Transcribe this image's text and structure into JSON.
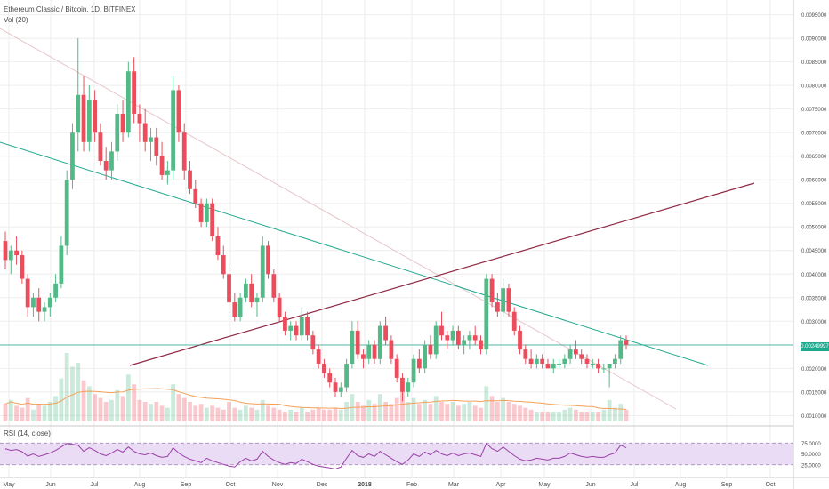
{
  "header": {
    "symbol_title": "Ethereum Classic / Bitcoin, 1D, BITFINEX",
    "volume_label": "Vol (20)"
  },
  "rsi": {
    "label": "RSI (14, close)",
    "levels": [
      "75.0000",
      "50.0000",
      "25.0000"
    ],
    "level_values": [
      75,
      50,
      25
    ]
  },
  "last_price_tag": "0.00249997",
  "colors": {
    "up": "#53b987",
    "down": "#eb4d5c",
    "teal_line": "#21a98f",
    "maroon_line": "#8e2a44",
    "rsi_line": "#9b3fa7",
    "rsi_band": "#eadcf5",
    "volume_ma": "#f5a05a",
    "grid": "#eeeeee"
  },
  "chart_data": {
    "type": "candlestick",
    "title": "Ethereum Classic / Bitcoin, 1D, BITFINEX",
    "x_tick_labels": [
      "May",
      "Jun",
      "Jul",
      "Aug",
      "Sep",
      "Oct",
      "Nov",
      "Dec",
      "2018",
      "Feb",
      "Mar",
      "Apr",
      "May",
      "Jun",
      "Jul",
      "Aug",
      "Sep",
      "Oct"
    ],
    "y_tick_labels": [
      "0.0095000",
      "0.0090000",
      "0.0085000",
      "0.0080000",
      "0.0075000",
      "0.0070000",
      "0.0065000",
      "0.0060000",
      "0.0055000",
      "0.0050000",
      "0.0045000",
      "0.0040000",
      "0.0035000",
      "0.0030000",
      "0.0025000",
      "0.0020000",
      "0.0015000",
      "0.0010000"
    ],
    "ylim": [
      0.00095,
      0.0097
    ],
    "series": [
      {
        "values": [
          [
            0.0047,
            0.0049,
            0.0041,
            0.0043
          ],
          [
            0.0043,
            0.0046,
            0.004,
            0.0045
          ],
          [
            0.0045,
            0.0048,
            0.0042,
            0.0044
          ],
          [
            0.0044,
            0.0045,
            0.0038,
            0.0039
          ],
          [
            0.0039,
            0.004,
            0.0031,
            0.0033
          ],
          [
            0.0033,
            0.0036,
            0.0031,
            0.0035
          ],
          [
            0.0035,
            0.0037,
            0.003,
            0.0032
          ],
          [
            0.0032,
            0.0034,
            0.003,
            0.0033
          ],
          [
            0.0033,
            0.0036,
            0.0031,
            0.0035
          ],
          [
            0.0035,
            0.004,
            0.0034,
            0.0038
          ],
          [
            0.0038,
            0.0048,
            0.0037,
            0.0046
          ],
          [
            0.0046,
            0.0062,
            0.0044,
            0.006
          ],
          [
            0.006,
            0.0072,
            0.0058,
            0.007
          ],
          [
            0.007,
            0.009,
            0.0066,
            0.0078
          ],
          [
            0.0078,
            0.0082,
            0.0066,
            0.0068
          ],
          [
            0.0068,
            0.008,
            0.0066,
            0.0077
          ],
          [
            0.0077,
            0.0079,
            0.0068,
            0.007
          ],
          [
            0.007,
            0.0072,
            0.0063,
            0.0064
          ],
          [
            0.0064,
            0.0067,
            0.006,
            0.0062
          ],
          [
            0.0062,
            0.0068,
            0.006,
            0.0066
          ],
          [
            0.0066,
            0.0076,
            0.0064,
            0.0074
          ],
          [
            0.0074,
            0.0077,
            0.0068,
            0.007
          ],
          [
            0.007,
            0.0085,
            0.0069,
            0.0083
          ],
          [
            0.0083,
            0.0086,
            0.0072,
            0.0074
          ],
          [
            0.0074,
            0.0076,
            0.0068,
            0.0072
          ],
          [
            0.0072,
            0.0075,
            0.0066,
            0.0068
          ],
          [
            0.0068,
            0.0071,
            0.0064,
            0.0069
          ],
          [
            0.0069,
            0.0071,
            0.0063,
            0.0065
          ],
          [
            0.0065,
            0.0068,
            0.006,
            0.0061
          ],
          [
            0.0061,
            0.0064,
            0.0059,
            0.0062
          ],
          [
            0.0062,
            0.0082,
            0.006,
            0.0079
          ],
          [
            0.0079,
            0.008,
            0.0068,
            0.007
          ],
          [
            0.007,
            0.0072,
            0.006,
            0.0062
          ],
          [
            0.0062,
            0.0064,
            0.0057,
            0.0058
          ],
          [
            0.0058,
            0.006,
            0.0054,
            0.0055
          ],
          [
            0.0055,
            0.0056,
            0.005,
            0.0051
          ],
          [
            0.0051,
            0.0056,
            0.005,
            0.0055
          ],
          [
            0.0055,
            0.0056,
            0.0047,
            0.0048
          ],
          [
            0.0048,
            0.005,
            0.0043,
            0.0044
          ],
          [
            0.0044,
            0.0046,
            0.0039,
            0.004
          ],
          [
            0.004,
            0.0042,
            0.0033,
            0.0034
          ],
          [
            0.0034,
            0.0036,
            0.003,
            0.0031
          ],
          [
            0.0031,
            0.0036,
            0.003,
            0.0035
          ],
          [
            0.0035,
            0.0039,
            0.0034,
            0.0038
          ],
          [
            0.0038,
            0.004,
            0.0033,
            0.0034
          ],
          [
            0.0034,
            0.0036,
            0.0031,
            0.0035
          ],
          [
            0.0035,
            0.0048,
            0.0034,
            0.0046
          ],
          [
            0.0046,
            0.0047,
            0.0039,
            0.004
          ],
          [
            0.004,
            0.0041,
            0.0034,
            0.0035
          ],
          [
            0.0035,
            0.0036,
            0.003,
            0.0031
          ],
          [
            0.0031,
            0.0032,
            0.0027,
            0.0028
          ],
          [
            0.0028,
            0.003,
            0.0026,
            0.0029
          ],
          [
            0.0029,
            0.003,
            0.0026,
            0.0027
          ],
          [
            0.0027,
            0.0033,
            0.0026,
            0.0031
          ],
          [
            0.0031,
            0.0032,
            0.0026,
            0.0027
          ],
          [
            0.0027,
            0.0028,
            0.0023,
            0.0024
          ],
          [
            0.0024,
            0.0025,
            0.002,
            0.0021
          ],
          [
            0.0021,
            0.0022,
            0.0018,
            0.0019
          ],
          [
            0.0019,
            0.002,
            0.0016,
            0.0017
          ],
          [
            0.0017,
            0.0018,
            0.0014,
            0.0015
          ],
          [
            0.0015,
            0.0017,
            0.0014,
            0.0016
          ],
          [
            0.0016,
            0.0022,
            0.0015,
            0.0021
          ],
          [
            0.0021,
            0.003,
            0.002,
            0.0028
          ],
          [
            0.0028,
            0.003,
            0.0022,
            0.0023
          ],
          [
            0.0023,
            0.0024,
            0.002,
            0.0022
          ],
          [
            0.0022,
            0.0026,
            0.0021,
            0.0025
          ],
          [
            0.0025,
            0.0026,
            0.0021,
            0.0022
          ],
          [
            0.0022,
            0.003,
            0.0021,
            0.0029
          ],
          [
            0.0029,
            0.0031,
            0.0025,
            0.0026
          ],
          [
            0.0026,
            0.0027,
            0.0021,
            0.0022
          ],
          [
            0.0022,
            0.0023,
            0.0017,
            0.0018
          ],
          [
            0.0018,
            0.0019,
            0.0013,
            0.0015
          ],
          [
            0.0015,
            0.0018,
            0.0014,
            0.0017
          ],
          [
            0.0017,
            0.0023,
            0.0016,
            0.0022
          ],
          [
            0.0022,
            0.0024,
            0.0019,
            0.002
          ],
          [
            0.002,
            0.0026,
            0.0019,
            0.0025
          ],
          [
            0.0025,
            0.0027,
            0.0022,
            0.0023
          ],
          [
            0.0023,
            0.003,
            0.0022,
            0.0029
          ],
          [
            0.0029,
            0.0032,
            0.0026,
            0.0027
          ],
          [
            0.0027,
            0.0028,
            0.0024,
            0.0026
          ],
          [
            0.0026,
            0.0029,
            0.0025,
            0.0028
          ],
          [
            0.0028,
            0.0029,
            0.0024,
            0.0025
          ],
          [
            0.0025,
            0.0027,
            0.0023,
            0.0026
          ],
          [
            0.0026,
            0.0028,
            0.0024,
            0.0027
          ],
          [
            0.0027,
            0.0029,
            0.0025,
            0.0026
          ],
          [
            0.0026,
            0.0027,
            0.0023,
            0.0024
          ],
          [
            0.0024,
            0.004,
            0.0023,
            0.0039
          ],
          [
            0.0039,
            0.004,
            0.0033,
            0.0034
          ],
          [
            0.0034,
            0.0036,
            0.0031,
            0.0032
          ],
          [
            0.0032,
            0.0039,
            0.0031,
            0.0037
          ],
          [
            0.0037,
            0.0038,
            0.0031,
            0.0032
          ],
          [
            0.0032,
            0.0033,
            0.0027,
            0.0028
          ],
          [
            0.0028,
            0.0029,
            0.0023,
            0.0024
          ],
          [
            0.0024,
            0.0025,
            0.0021,
            0.0022
          ],
          [
            0.0022,
            0.0024,
            0.002,
            0.0021
          ],
          [
            0.0021,
            0.0023,
            0.002,
            0.0022
          ],
          [
            0.0022,
            0.0023,
            0.002,
            0.0021
          ],
          [
            0.0021,
            0.0022,
            0.002,
            0.002
          ],
          [
            0.002,
            0.0022,
            0.0019,
            0.0021
          ],
          [
            0.0021,
            0.0022,
            0.002,
            0.0021
          ],
          [
            0.0021,
            0.0023,
            0.002,
            0.0022
          ],
          [
            0.0022,
            0.0025,
            0.0021,
            0.0024
          ],
          [
            0.0024,
            0.0026,
            0.0022,
            0.0023
          ],
          [
            0.0023,
            0.0024,
            0.0021,
            0.0022
          ],
          [
            0.0022,
            0.0023,
            0.002,
            0.0021
          ],
          [
            0.0021,
            0.0022,
            0.002,
            0.0021
          ],
          [
            0.0021,
            0.0022,
            0.0019,
            0.002
          ],
          [
            0.002,
            0.0021,
            0.0019,
            0.002
          ],
          [
            0.002,
            0.0021,
            0.0016,
            0.0021
          ],
          [
            0.0021,
            0.0023,
            0.002,
            0.0022
          ],
          [
            0.0022,
            0.0027,
            0.0021,
            0.0026
          ],
          [
            0.0026,
            0.0027,
            0.0024,
            0.0025
          ]
        ]
      }
    ],
    "volume": [
      0.9,
      1.1,
      0.8,
      0.7,
      1.2,
      0.6,
      0.9,
      0.8,
      1.0,
      1.3,
      2.2,
      3.5,
      2.8,
      3.0,
      2.1,
      1.8,
      1.4,
      1.2,
      1.0,
      1.1,
      1.6,
      1.3,
      2.4,
      1.9,
      1.1,
      1.0,
      0.9,
      1.0,
      0.8,
      0.7,
      1.9,
      1.4,
      1.2,
      1.0,
      0.8,
      0.9,
      0.7,
      0.8,
      0.7,
      0.6,
      1.0,
      0.7,
      0.6,
      0.8,
      0.7,
      0.6,
      1.1,
      0.8,
      0.7,
      0.6,
      0.5,
      0.6,
      0.5,
      0.7,
      0.5,
      0.6,
      0.7,
      0.6,
      0.6,
      0.7,
      0.6,
      1.0,
      1.4,
      1.0,
      0.8,
      1.1,
      0.9,
      1.4,
      1.0,
      0.9,
      1.2,
      1.5,
      1.0,
      1.2,
      0.9,
      1.1,
      0.9,
      1.3,
      1.0,
      0.9,
      1.0,
      0.8,
      0.9,
      1.0,
      0.8,
      0.7,
      1.8,
      1.3,
      1.0,
      1.2,
      1.0,
      0.9,
      0.8,
      0.7,
      0.6,
      0.5,
      0.5,
      0.5,
      0.5,
      0.5,
      0.6,
      0.7,
      0.6,
      0.5,
      0.5,
      0.5,
      0.5,
      0.6,
      1.1,
      0.7,
      0.9,
      0.6
    ],
    "rsi_values": [
      62,
      58,
      60,
      55,
      45,
      50,
      44,
      48,
      52,
      58,
      66,
      74,
      72,
      70,
      56,
      64,
      58,
      50,
      46,
      52,
      60,
      54,
      66,
      56,
      50,
      48,
      52,
      46,
      42,
      44,
      64,
      52,
      44,
      38,
      34,
      30,
      40,
      34,
      30,
      26,
      22,
      20,
      32,
      40,
      34,
      38,
      56,
      44,
      36,
      30,
      26,
      30,
      28,
      38,
      32,
      26,
      22,
      20,
      18,
      15,
      20,
      40,
      58,
      46,
      42,
      50,
      44,
      56,
      48,
      40,
      32,
      26,
      36,
      50,
      44,
      54,
      48,
      58,
      50,
      46,
      52,
      46,
      50,
      52,
      48,
      44,
      74,
      62,
      56,
      66,
      56,
      46,
      38,
      34,
      36,
      40,
      38,
      36,
      40,
      40,
      44,
      52,
      48,
      44,
      42,
      44,
      42,
      42,
      48,
      52,
      70,
      64
    ]
  }
}
